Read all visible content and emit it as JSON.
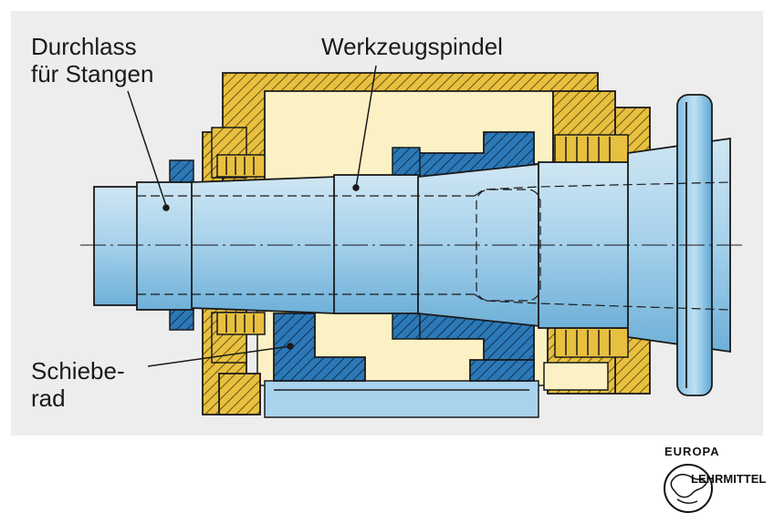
{
  "labels": {
    "passage_line1": "Durchlass",
    "passage_line2": "für Stangen",
    "spindle": "Werkzeugspindel",
    "gear_line1": "Schiebe-",
    "gear_line2": "rad"
  },
  "logo": {
    "top_text": "EUROPA",
    "side_text": "LEHRMITTEL"
  },
  "colors": {
    "background_panel": "#ededed",
    "shaft_blue": "#9ccbe6",
    "gear_blue": "#2c78b6",
    "housing_yellow": "#e8c040",
    "housing_fill": "#fbf1c4",
    "outline": "#1a1a1a"
  }
}
